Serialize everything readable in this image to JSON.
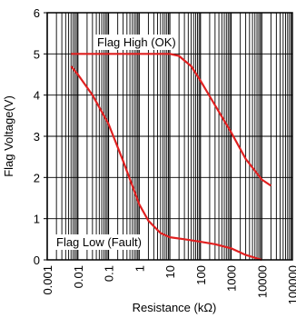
{
  "chart_data": {
    "type": "line",
    "xlabel": "Resistance (kΩ)",
    "ylabel": "Flag Voltage(V)",
    "xscale": "log",
    "xlim": [
      0.001,
      100000
    ],
    "ylim": [
      0,
      6
    ],
    "grid": "log-x minor and major lines, y major lines",
    "x_tick_labels": [
      "0.001",
      "0.01",
      "0.1",
      "1",
      "10",
      "100",
      "1000",
      "10000",
      "100000"
    ],
    "y_tick_labels": [
      "0",
      "1",
      "2",
      "3",
      "4",
      "5",
      "6"
    ],
    "annotations": [
      "Flag High (OK)",
      "Flag Low (Fault)"
    ],
    "series": [
      {
        "x": [
          0.006,
          0.01,
          0.1,
          1,
          5,
          10,
          20,
          50,
          100,
          300,
          1000,
          3000,
          10000,
          20000
        ],
        "y": [
          5.0,
          5.0,
          5.0,
          5.0,
          5.0,
          5.0,
          4.95,
          4.7,
          4.35,
          3.75,
          3.1,
          2.45,
          1.95,
          1.8
        ],
        "color": "#e02020"
      },
      {
        "x": [
          0.006,
          0.01,
          0.03,
          0.1,
          0.3,
          1,
          2,
          5,
          10,
          30,
          100,
          300,
          1000,
          3000,
          10000
        ],
        "y": [
          4.7,
          4.5,
          4.0,
          3.3,
          2.4,
          1.35,
          0.95,
          0.65,
          0.55,
          0.5,
          0.44,
          0.38,
          0.28,
          0.12,
          0.0
        ],
        "color": "#e02020"
      }
    ]
  }
}
